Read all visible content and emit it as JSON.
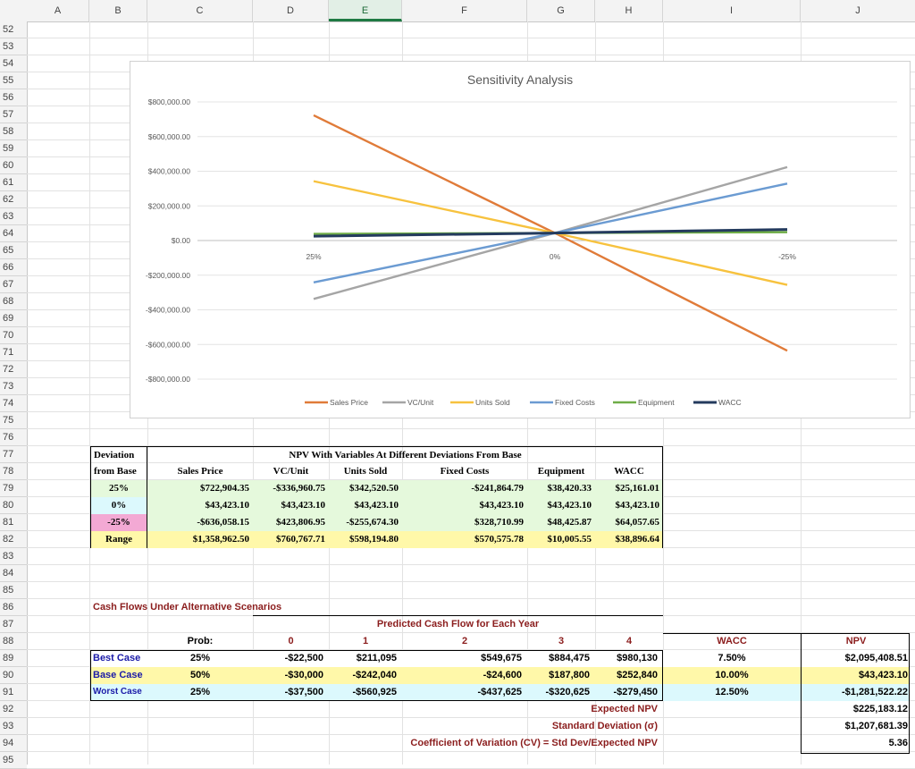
{
  "columns": [
    "A",
    "B",
    "C",
    "D",
    "E",
    "F",
    "G",
    "H",
    "I",
    "J"
  ],
  "selected_column": "E",
  "rows": [
    "52",
    "53",
    "54",
    "55",
    "56",
    "57",
    "58",
    "59",
    "60",
    "61",
    "62",
    "63",
    "64",
    "65",
    "66",
    "67",
    "68",
    "69",
    "70",
    "71",
    "72",
    "73",
    "74",
    "75",
    "76",
    "77",
    "78",
    "79",
    "80",
    "81",
    "82",
    "83",
    "84",
    "85",
    "86",
    "87",
    "88",
    "89",
    "90",
    "91",
    "92",
    "93",
    "94",
    "95"
  ],
  "chart": {
    "title": "Sensitivity Analysis",
    "y_ticks": [
      "$800,000.00",
      "$600,000.00",
      "$400,000.00",
      "$200,000.00",
      "$0.00",
      "-$200,000.00",
      "-$400,000.00",
      "-$600,000.00",
      "-$800,000.00"
    ],
    "x_ticks": [
      "25%",
      "0%",
      "-25%"
    ]
  },
  "chart_data": {
    "type": "line",
    "title": "Sensitivity Analysis",
    "categories": [
      "25%",
      "0%",
      "-25%"
    ],
    "ylim": [
      -800000,
      800000
    ],
    "legend": "bottom",
    "grid": true,
    "series": [
      {
        "name": "Sales Price",
        "color": "#e07b39",
        "values": [
          722904.35,
          43423.1,
          -636058.15
        ]
      },
      {
        "name": "VC/Unit",
        "color": "#a5a5a5",
        "values": [
          -336960.75,
          43423.1,
          423806.95
        ]
      },
      {
        "name": "Units Sold",
        "color": "#f7c23e",
        "values": [
          342520.5,
          43423.1,
          -255674.3
        ]
      },
      {
        "name": "Fixed Costs",
        "color": "#6b9bd2",
        "values": [
          -241864.79,
          43423.1,
          328710.99
        ]
      },
      {
        "name": "Equipment",
        "color": "#6fad47",
        "values": [
          38420.33,
          43423.1,
          48425.87
        ]
      },
      {
        "name": "WACC",
        "color": "#243b5e",
        "values": [
          25161.01,
          43423.1,
          64057.65
        ]
      }
    ]
  },
  "sens": {
    "title": "NPV With Variables At Different Deviations From Base",
    "dev_header1": "Deviation",
    "dev_header2": "from Base",
    "headers": [
      "Sales Price",
      "VC/Unit",
      "Units Sold",
      "Fixed Costs",
      "Equipment",
      "WACC"
    ],
    "rows": [
      {
        "label": "25%",
        "vals": [
          "$722,904.35",
          "-$336,960.75",
          "$342,520.50",
          "-$241,864.79",
          "$38,420.33",
          "$25,161.01"
        ]
      },
      {
        "label": "0%",
        "vals": [
          "$43,423.10",
          "$43,423.10",
          "$43,423.10",
          "$43,423.10",
          "$43,423.10",
          "$43,423.10"
        ]
      },
      {
        "label": "-25%",
        "vals": [
          "-$636,058.15",
          "$423,806.95",
          "-$255,674.30",
          "$328,710.99",
          "$48,425.87",
          "$64,057.65"
        ]
      },
      {
        "label": "Range",
        "vals": [
          "$1,358,962.50",
          "$760,767.71",
          "$598,194.80",
          "$570,575.78",
          "$10,005.55",
          "$38,896.64"
        ]
      }
    ]
  },
  "cash": {
    "title": "Cash Flows Under Alternative Scenarios",
    "subtitle": "Predicted Cash Flow for Each Year",
    "prob_header": "Prob:",
    "years": [
      "0",
      "1",
      "2",
      "3",
      "4"
    ],
    "wacc_header": "WACC",
    "npv_header": "NPV",
    "rows": [
      {
        "label": "Best Case",
        "prob": "25%",
        "vals": [
          "-$22,500",
          "$211,095",
          "$549,675",
          "$884,475",
          "$980,130"
        ],
        "wacc": "7.50%",
        "npv": "$2,095,408.51"
      },
      {
        "label": "Base Case",
        "prob": "50%",
        "vals": [
          "-$30,000",
          "-$242,040",
          "-$24,600",
          "$187,800",
          "$252,840"
        ],
        "wacc": "10.00%",
        "npv": "$43,423.10"
      },
      {
        "label": "Worst Case",
        "prob": "25%",
        "vals": [
          "-$37,500",
          "-$560,925",
          "-$437,625",
          "-$320,625",
          "-$279,450"
        ],
        "wacc": "12.50%",
        "npv": "-$1,281,522.22"
      }
    ],
    "expected_label": "Expected NPV",
    "expected_value": "$225,183.12",
    "sd_label": "Standard Deviation  (σ)",
    "sd_value": "$1,207,681.39",
    "cv_label": "Coefficient of Variation (CV) = Std Dev/Expected NPV",
    "cv_value": "5.36"
  }
}
